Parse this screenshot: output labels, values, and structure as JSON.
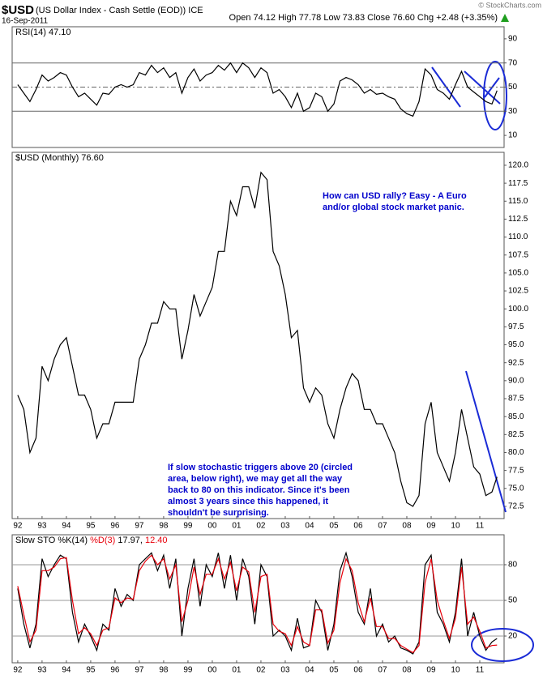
{
  "header": {
    "symbol": "$USD",
    "name": "(US Dollar Index - Cash Settle (EOD)) ICE",
    "date": "16-Sep-2011",
    "quote": "Open 74.12 High 77.78 Low 73.83 Close 76.60 Chg +2.48 (+3.35%)",
    "copyright": "© StockCharts.com"
  },
  "chart_data": [
    {
      "type": "line",
      "title": "RSI(14) 47.10",
      "color": "#000000",
      "x": [
        1992,
        1992.25,
        1992.5,
        1992.75,
        1993,
        1993.25,
        1993.5,
        1993.75,
        1994,
        1994.25,
        1994.5,
        1994.75,
        1995,
        1995.25,
        1995.5,
        1995.75,
        1996,
        1996.25,
        1996.5,
        1996.75,
        1997,
        1997.25,
        1997.5,
        1997.75,
        1998,
        1998.25,
        1998.5,
        1998.75,
        1999,
        1999.25,
        1999.5,
        1999.75,
        2000,
        2000.25,
        2000.5,
        2000.75,
        2001,
        2001.25,
        2001.5,
        2001.75,
        2002,
        2002.25,
        2002.5,
        2002.75,
        2003,
        2003.25,
        2003.5,
        2003.75,
        2004,
        2004.25,
        2004.5,
        2004.75,
        2005,
        2005.25,
        2005.5,
        2005.75,
        2006,
        2006.25,
        2006.5,
        2006.75,
        2007,
        2007.25,
        2007.5,
        2007.75,
        2008,
        2008.25,
        2008.5,
        2008.75,
        2009,
        2009.25,
        2009.5,
        2009.75,
        2010,
        2010.25,
        2010.5,
        2010.75,
        2011,
        2011.25,
        2011.5,
        2011.71
      ],
      "values": [
        52,
        45,
        38,
        48,
        60,
        55,
        58,
        62,
        60,
        50,
        42,
        45,
        40,
        35,
        45,
        44,
        50,
        52,
        50,
        52,
        62,
        60,
        68,
        62,
        66,
        58,
        62,
        45,
        58,
        65,
        55,
        60,
        62,
        68,
        64,
        70,
        62,
        70,
        66,
        58,
        66,
        62,
        45,
        48,
        42,
        33,
        45,
        30,
        33,
        45,
        42,
        30,
        36,
        55,
        58,
        56,
        52,
        45,
        48,
        44,
        45,
        42,
        40,
        32,
        28,
        26,
        38,
        65,
        60,
        48,
        45,
        40,
        52,
        63,
        50,
        46,
        42,
        38,
        36,
        47.1
      ],
      "xlim": [
        1991.77,
        2012.0
      ],
      "ylim": [
        0,
        100
      ],
      "yticks": [
        10,
        30,
        50,
        70,
        90
      ],
      "hlines": [
        {
          "value": 70,
          "dash": false
        },
        {
          "value": 50,
          "dash": true
        },
        {
          "value": 30,
          "dash": false
        }
      ]
    },
    {
      "type": "line",
      "title": "$USD (Monthly) 76.60",
      "color": "#000000",
      "x": [
        1992,
        1992.25,
        1992.5,
        1992.75,
        1993,
        1993.25,
        1993.5,
        1993.75,
        1994,
        1994.25,
        1994.5,
        1994.75,
        1995,
        1995.25,
        1995.5,
        1995.75,
        1996,
        1996.25,
        1996.5,
        1996.75,
        1997,
        1997.25,
        1997.5,
        1997.75,
        1998,
        1998.25,
        1998.5,
        1998.75,
        1999,
        1999.25,
        1999.5,
        1999.75,
        2000,
        2000.25,
        2000.5,
        2000.75,
        2001,
        2001.25,
        2001.5,
        2001.75,
        2002,
        2002.25,
        2002.5,
        2002.75,
        2003,
        2003.25,
        2003.5,
        2003.75,
        2004,
        2004.25,
        2004.5,
        2004.75,
        2005,
        2005.25,
        2005.5,
        2005.75,
        2006,
        2006.25,
        2006.5,
        2006.75,
        2007,
        2007.25,
        2007.5,
        2007.75,
        2008,
        2008.25,
        2008.5,
        2008.75,
        2009,
        2009.25,
        2009.5,
        2009.75,
        2010,
        2010.25,
        2010.5,
        2010.75,
        2011,
        2011.25,
        2011.5,
        2011.71
      ],
      "values": [
        88,
        86,
        80,
        82,
        92,
        90,
        93,
        95,
        96,
        92,
        88,
        88,
        86,
        82,
        84,
        84,
        87,
        87,
        87,
        87,
        93,
        95,
        98,
        98,
        101,
        100,
        100,
        93,
        97,
        102,
        99,
        101,
        103,
        108,
        108,
        115,
        113,
        117,
        117,
        114,
        119,
        118,
        108,
        106,
        102,
        96,
        97,
        89,
        87,
        89,
        88,
        84,
        82,
        86,
        89,
        91,
        90,
        86,
        86,
        84,
        84,
        82,
        80,
        76,
        73,
        72.5,
        74,
        84,
        87,
        80,
        78,
        76,
        80,
        86,
        82,
        78,
        77,
        74,
        74.5,
        76.6
      ],
      "xlim": [
        1991.77,
        2012.0
      ],
      "ylim": [
        70.8,
        121.8
      ],
      "yticks": [
        72.5,
        {
          "value": 75,
          "label": "75.0"
        },
        77.5,
        {
          "value": 80,
          "label": "80.0"
        },
        82.5,
        {
          "value": 85,
          "label": "85.0"
        },
        87.5,
        {
          "value": 90,
          "label": "90.0"
        },
        92.5,
        {
          "value": 95,
          "label": "95.0"
        },
        97.5,
        {
          "value": 100,
          "label": "100.0"
        },
        102.5,
        {
          "value": 105,
          "label": "105.0"
        },
        107.5,
        {
          "value": 110,
          "label": "110.0"
        },
        112.5,
        {
          "value": 115,
          "label": "115.0"
        },
        117.5,
        {
          "value": 120,
          "label": "120.0"
        }
      ],
      "xticks": [
        {
          "value": 1992,
          "label": "92"
        },
        {
          "value": 1993,
          "label": "93"
        },
        {
          "value": 1994,
          "label": "94"
        },
        {
          "value": 1995,
          "label": "95"
        },
        {
          "value": 1996,
          "label": "96"
        },
        {
          "value": 1997,
          "label": "97"
        },
        {
          "value": 1998,
          "label": "98"
        },
        {
          "value": 1999,
          "label": "99"
        },
        {
          "value": 2000,
          "label": "00"
        },
        {
          "value": 2001,
          "label": "01"
        },
        {
          "value": 2002,
          "label": "02"
        },
        {
          "value": 2003,
          "label": "03"
        },
        {
          "value": 2004,
          "label": "04"
        },
        {
          "value": 2005,
          "label": "05"
        },
        {
          "value": 2006,
          "label": "06"
        },
        {
          "value": 2007,
          "label": "07"
        },
        {
          "value": 2008,
          "label": "08"
        },
        {
          "value": 2009,
          "label": "09"
        },
        {
          "value": 2010,
          "label": "10"
        },
        {
          "value": 2011,
          "label": "11"
        }
      ],
      "annotations": [
        [
          "How can USD rally? Easy - A Euro",
          "and/or global stock market panic."
        ],
        [
          "If slow stochastic triggers above 20 (circled",
          "area, below right), we may get all the way",
          "back to 80 on this indicator. Since it's been",
          "almost 3 years since this happened, it",
          "shouldn't be surprising."
        ]
      ]
    },
    {
      "type": "line",
      "title": "Slow STO",
      "readings": [
        "17.97,",
        "12.40"
      ],
      "series": [
        {
          "name": "%K(14)",
          "color": "#000000",
          "values": [
            60,
            30,
            10,
            30,
            85,
            70,
            80,
            88,
            85,
            40,
            15,
            30,
            20,
            8,
            30,
            25,
            60,
            45,
            55,
            50,
            80,
            85,
            90,
            75,
            88,
            60,
            85,
            20,
            60,
            85,
            45,
            80,
            70,
            90,
            60,
            88,
            50,
            85,
            70,
            30,
            80,
            70,
            20,
            25,
            20,
            8,
            35,
            10,
            12,
            50,
            40,
            8,
            30,
            75,
            90,
            70,
            40,
            30,
            60,
            20,
            30,
            15,
            20,
            10,
            8,
            5,
            15,
            80,
            88,
            40,
            30,
            15,
            40,
            85,
            20,
            40,
            20,
            8,
            15,
            17.97
          ]
        },
        {
          "name": "%D(3)",
          "color": "#e8000b",
          "values": [
            62,
            38,
            15,
            25,
            75,
            75,
            78,
            85,
            86,
            50,
            22,
            27,
            22,
            12,
            25,
            27,
            52,
            48,
            52,
            51,
            75,
            83,
            88,
            80,
            85,
            68,
            80,
            32,
            50,
            78,
            55,
            72,
            72,
            85,
            68,
            82,
            58,
            78,
            74,
            40,
            70,
            72,
            30,
            24,
            22,
            12,
            28,
            15,
            12,
            42,
            42,
            14,
            25,
            65,
            85,
            75,
            48,
            32,
            52,
            28,
            28,
            18,
            18,
            12,
            9,
            6,
            12,
            65,
            85,
            50,
            33,
            18,
            35,
            78,
            30,
            36,
            24,
            10,
            12,
            12.4
          ]
        }
      ],
      "x": [
        1992,
        1992.25,
        1992.5,
        1992.75,
        1993,
        1993.25,
        1993.5,
        1993.75,
        1994,
        1994.25,
        1994.5,
        1994.75,
        1995,
        1995.25,
        1995.5,
        1995.75,
        1996,
        1996.25,
        1996.5,
        1996.75,
        1997,
        1997.25,
        1997.5,
        1997.75,
        1998,
        1998.25,
        1998.5,
        1998.75,
        1999,
        1999.25,
        1999.5,
        1999.75,
        2000,
        2000.25,
        2000.5,
        2000.75,
        2001,
        2001.25,
        2001.5,
        2001.75,
        2002,
        2002.25,
        2002.5,
        2002.75,
        2003,
        2003.25,
        2003.5,
        2003.75,
        2004,
        2004.25,
        2004.5,
        2004.75,
        2005,
        2005.25,
        2005.5,
        2005.75,
        2006,
        2006.25,
        2006.5,
        2006.75,
        2007,
        2007.25,
        2007.5,
        2007.75,
        2008,
        2008.25,
        2008.5,
        2008.75,
        2009,
        2009.25,
        2009.5,
        2009.75,
        2010,
        2010.25,
        2010.5,
        2010.75,
        2011,
        2011.25,
        2011.5,
        2011.71
      ],
      "xlim": [
        1991.77,
        2012.0
      ],
      "ylim": [
        -2.5,
        105.2
      ],
      "yticks": [
        20,
        50,
        80
      ],
      "grid": true,
      "xticks": [
        {
          "value": 1992,
          "label": "92"
        },
        {
          "value": 1993,
          "label": "93"
        },
        {
          "value": 1994,
          "label": "94"
        },
        {
          "value": 1995,
          "label": "95"
        },
        {
          "value": 1996,
          "label": "96"
        },
        {
          "value": 1997,
          "label": "97"
        },
        {
          "value": 1998,
          "label": "98"
        },
        {
          "value": 1999,
          "label": "99"
        },
        {
          "value": 2000,
          "label": "00"
        },
        {
          "value": 2001,
          "label": "01"
        },
        {
          "value": 2002,
          "label": "02"
        },
        {
          "value": 2003,
          "label": "03"
        },
        {
          "value": 2004,
          "label": "04"
        },
        {
          "value": 2005,
          "label": "05"
        },
        {
          "value": 2006,
          "label": "06"
        },
        {
          "value": 2007,
          "label": "07"
        },
        {
          "value": 2008,
          "label": "08"
        },
        {
          "value": 2009,
          "label": "09"
        },
        {
          "value": 2010,
          "label": "10"
        },
        {
          "value": 2011,
          "label": "11"
        }
      ]
    }
  ]
}
